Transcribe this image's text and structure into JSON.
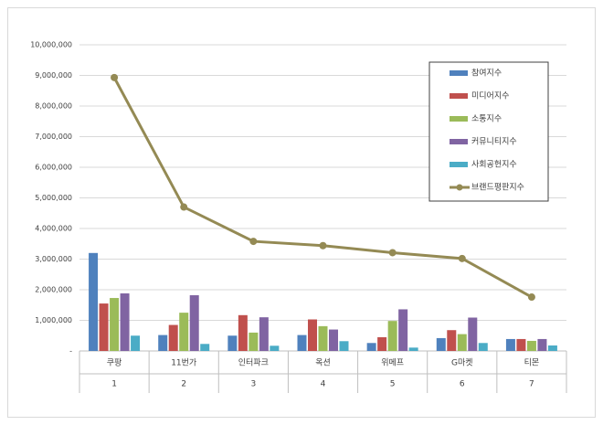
{
  "chart_data": {
    "type": "bar",
    "categories": [
      "쿠팡",
      "11번가",
      "인터파크",
      "옥션",
      "위메프",
      "G마켓",
      "티몬"
    ],
    "x_sublabels": [
      "1",
      "2",
      "3",
      "4",
      "5",
      "6",
      "7"
    ],
    "series": [
      {
        "name": "참여지수",
        "color": "#4f81bd",
        "values": [
          3200000,
          520000,
          500000,
          520000,
          260000,
          420000,
          390000
        ]
      },
      {
        "name": "미디어지수",
        "color": "#c0504d",
        "values": [
          1550000,
          850000,
          1170000,
          1030000,
          450000,
          680000,
          390000
        ]
      },
      {
        "name": "소통지수",
        "color": "#9bbb59",
        "values": [
          1730000,
          1250000,
          600000,
          810000,
          980000,
          550000,
          330000
        ]
      },
      {
        "name": "커뮤니티지수",
        "color": "#8064a2",
        "values": [
          1880000,
          1820000,
          1100000,
          700000,
          1360000,
          1090000,
          390000
        ]
      },
      {
        "name": "사회공헌지수",
        "color": "#4bacc6",
        "values": [
          500000,
          230000,
          170000,
          320000,
          110000,
          260000,
          180000
        ]
      },
      {
        "name": "브랜드평판지수",
        "color": "#948a54",
        "type": "line",
        "values": [
          8930000,
          4700000,
          3580000,
          3440000,
          3210000,
          3020000,
          1760000
        ]
      }
    ],
    "ylim": [
      0,
      10000000
    ],
    "yticks": [
      {
        "value": 0,
        "label": "-"
      },
      {
        "value": 1000000,
        "label": "1,000,000"
      },
      {
        "value": 2000000,
        "label": "2,000,000"
      },
      {
        "value": 3000000,
        "label": "3,000,000"
      },
      {
        "value": 4000000,
        "label": "4,000,000"
      },
      {
        "value": 5000000,
        "label": "5,000,000"
      },
      {
        "value": 6000000,
        "label": "6,000,000"
      },
      {
        "value": 7000000,
        "label": "7,000,000"
      },
      {
        "value": 8000000,
        "label": "8,000,000"
      },
      {
        "value": 9000000,
        "label": "9,000,000"
      },
      {
        "value": 10000000,
        "label": "10,000,000"
      }
    ],
    "grid": true,
    "legend": "upper right"
  }
}
